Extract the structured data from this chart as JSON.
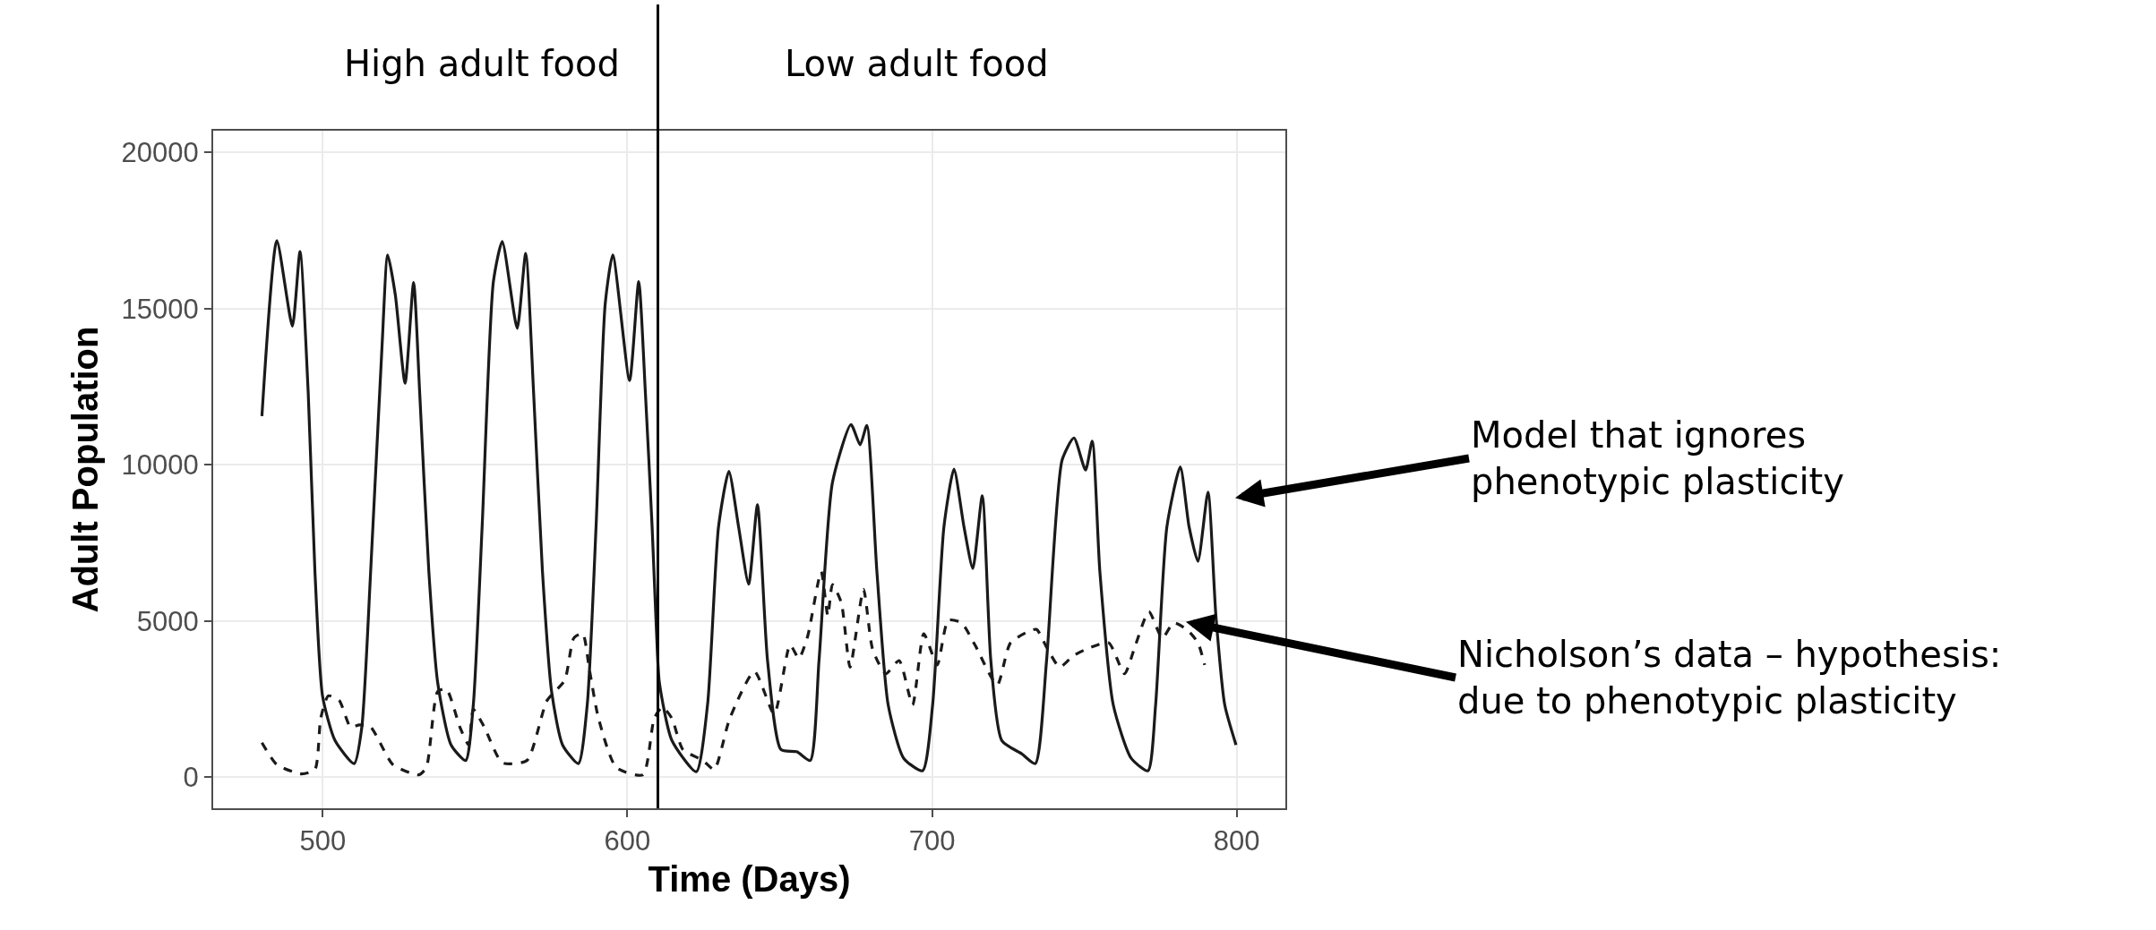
{
  "chart_data": {
    "type": "line",
    "xlabel": "Time (Days)",
    "ylabel": "Adult Population",
    "xlim": [
      464,
      816
    ],
    "xticks": [
      500,
      600,
      700,
      800
    ],
    "ylim": [
      -1000,
      20700
    ],
    "yticks": [
      0,
      5000,
      10000,
      15000,
      20000
    ],
    "grid": true,
    "marker": "none",
    "series": [
      {
        "color": "#1a1a1a",
        "line_style": "solid",
        "x": [
          480,
          484.9,
          490,
          492.5,
          495.2,
          497.4,
          499.9,
          504,
          510.3,
          512.8,
          515.7,
          519.4,
          521.3,
          523.8,
          527,
          529.8,
          531.8,
          534.8,
          537.7,
          542.1,
          546.9,
          549.4,
          552.3,
          556,
          558.9,
          563.8,
          566.6,
          569.2,
          572.1,
          575.1,
          578.7,
          583.9,
          586.8,
          589.7,
          592.7,
          595.2,
          600.7,
          603.7,
          605.9,
          608.1,
          609.5,
          610.5,
          614.6,
          622.6,
          626.3,
          629.9,
          633.3,
          636.5,
          639.8,
          642.7,
          646,
          650.4,
          655.6,
          660,
          662.9,
          667.3,
          673.4,
          676.4,
          678.6,
          681.9,
          685.6,
          690.7,
          696.9,
          700.2,
          703.9,
          707.2,
          710.5,
          713.4,
          716.5,
          719.3,
          722.9,
          729.5,
          733.9,
          737.6,
          742.7,
          746.6,
          750.4,
          752.6,
          755.1,
          759.5,
          765.4,
          770.9,
          773.4,
          777.1,
          781.5,
          784.4,
          787.3,
          790.6,
          793.2,
          796.1,
          799.8
        ],
        "values": [
          11560,
          17180,
          14440,
          16830,
          12300,
          6590,
          2600,
          1170,
          430,
          1600,
          6590,
          13730,
          16720,
          15440,
          12610,
          15840,
          12300,
          6590,
          3030,
          1030,
          530,
          2310,
          8020,
          15870,
          17150,
          14370,
          16770,
          12300,
          6590,
          2740,
          1030,
          430,
          2310,
          8020,
          15150,
          16720,
          12700,
          15870,
          12300,
          8020,
          4740,
          3020,
          1170,
          170,
          2310,
          8010,
          9790,
          8010,
          6180,
          8720,
          3730,
          880,
          810,
          530,
          3730,
          9430,
          11290,
          10640,
          11260,
          6580,
          2310,
          600,
          200,
          2310,
          8010,
          9860,
          8010,
          6680,
          9010,
          3730,
          1170,
          740,
          430,
          3730,
          10150,
          10860,
          9830,
          10760,
          6580,
          2310,
          600,
          200,
          2310,
          8010,
          9930,
          8010,
          6910,
          9120,
          5160,
          2310,
          1030
        ]
      },
      {
        "color": "#1a1a1a",
        "line_style": "dashed",
        "x": [
          480,
          484.9,
          493,
          497.4,
          499.3,
          501.8,
          505.4,
          509.1,
          512,
          515.7,
          523,
          531.5,
          534,
          537.7,
          540.6,
          545,
          547.9,
          549.4,
          553,
          558.9,
          567,
          573.6,
          579.4,
          582.4,
          585.3,
          587.5,
          590.5,
          596.3,
          605.1,
          608.8,
          611.5,
          614.6,
          618.2,
          624.8,
          628.5,
          633.6,
          641.7,
          648.2,
          653.4,
          656.3,
          659.2,
          663.6,
          665.8,
          667.3,
          670.2,
          673.1,
          677.5,
          680.5,
          684.8,
          689.2,
          693.6,
          697.3,
          701.7,
          705.3,
          709.7,
          714.1,
          721.4,
          725.8,
          734.2,
          737.6,
          741.9,
          746.3,
          752.2,
          758,
          763.2,
          766.8,
          771.2,
          775.6,
          779.3,
          783.6,
          787.3,
          789.5
        ],
        "values": [
          1100,
          400,
          100,
          240,
          1880,
          2600,
          2450,
          1600,
          1670,
          1600,
          400,
          70,
          310,
          2740,
          2810,
          1600,
          1030,
          2170,
          1600,
          460,
          530,
          2450,
          3100,
          4450,
          4600,
          3450,
          1880,
          310,
          70,
          1880,
          2240,
          1880,
          880,
          530,
          240,
          1880,
          3380,
          2020,
          4230,
          3800,
          4520,
          6580,
          5160,
          6160,
          5590,
          3520,
          6010,
          4090,
          3310,
          3730,
          2310,
          4590,
          3590,
          5020,
          4940,
          4230,
          2950,
          4300,
          4730,
          4160,
          3520,
          3880,
          4160,
          4300,
          3310,
          4230,
          5300,
          4450,
          4940,
          4730,
          4300,
          3590
        ]
      }
    ],
    "ref_lines": [
      {
        "axis": "x",
        "value": 610,
        "color": "#000000"
      }
    ],
    "annotations": [
      "High adult food",
      "Low adult food",
      "Model that ignores\nphenotypic plasticity",
      "Nicholson’s data – hypothesis:\ndue to phenotypic plasticity"
    ]
  }
}
